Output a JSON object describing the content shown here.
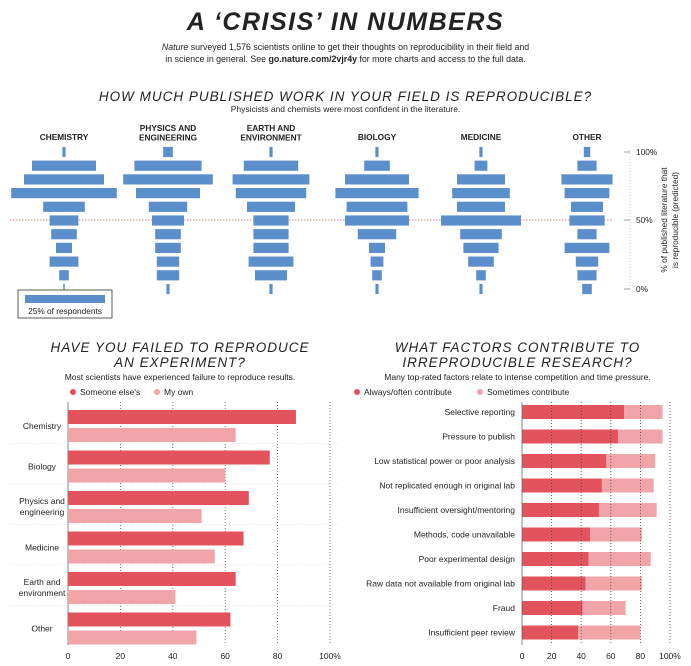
{
  "header": {
    "title": "A ‘CRISIS’ IN NUMBERS",
    "subtitle_line1_prefix": "Nature",
    "subtitle_line1_rest": " surveyed 1,576 scientists online to get their thoughts on reproducibility in their field and",
    "subtitle_line2_prefix": "in science in general. See ",
    "subtitle_link": "go.nature.com/2vjr4y",
    "subtitle_line2_suffix": " for more charts and access to the full data."
  },
  "section1": {
    "title": "HOW MUCH PUBLISHED WORK IN YOUR FIELD IS REPRODUCIBLE?",
    "note": "Physicists and chemists were most confident in the literature.",
    "legend_label": "25% of respondents"
  },
  "section2": {
    "title_line1": "HAVE YOU FAILED TO REPRODUCE",
    "title_line2": "AN EXPERIMENT?",
    "note": "Most scientists have experienced failure to reproduce results.",
    "legend1": "Someone else's",
    "legend2": "My own"
  },
  "section3": {
    "title_line1": "WHAT FACTORS CONTRIBUTE TO",
    "title_line2": "IRREPRODUCIBLE RESEARCH?",
    "note": "Many top-rated factors relate to intense competition and time pressure.",
    "legend1": "Always/often contribute",
    "legend2": "Sometimes contribute"
  },
  "colors": {
    "dark_red": "#e2535e",
    "light_red": "#f2a5a8",
    "blue": "#5b8fcb",
    "red_line": "#d9534f"
  },
  "chart_data": [
    {
      "type": "histogram-violin",
      "categories": [
        "CHEMISTRY",
        "PHYSICS AND ENGINEERING",
        "EARTH AND ENVIRONMENT",
        "BIOLOGY",
        "MEDICINE",
        "OTHER"
      ],
      "ylabel": "% of published literature that is reproducible (predicted)",
      "yticks": [
        "100%",
        "50%",
        "0%"
      ],
      "scale_note": "25% of respondents",
      "bins_top_to_bottom": [
        "100",
        "90",
        "80",
        "70",
        "60",
        "50",
        "40",
        "30",
        "20",
        "10",
        "0"
      ],
      "series": [
        {
          "name": "CHEMISTRY",
          "values": [
            1,
            20,
            25,
            33,
            13,
            9,
            8,
            5,
            9,
            3,
            0
          ]
        },
        {
          "name": "PHYSICS AND ENGINEERING",
          "values": [
            3,
            21,
            28,
            20,
            12,
            10,
            8,
            8,
            7,
            7,
            1
          ]
        },
        {
          "name": "EARTH AND ENVIRONMENT",
          "values": [
            1,
            17,
            24,
            22,
            15,
            11,
            11,
            11,
            14,
            10,
            1
          ]
        },
        {
          "name": "BIOLOGY",
          "values": [
            1,
            8,
            20,
            26,
            19,
            20,
            12,
            5,
            4,
            3,
            1
          ]
        },
        {
          "name": "MEDICINE",
          "values": [
            1,
            4,
            15,
            18,
            15,
            25,
            13,
            11,
            8,
            3,
            1
          ]
        },
        {
          "name": "OTHER",
          "values": [
            2,
            6,
            16,
            14,
            10,
            11,
            6,
            14,
            7,
            6,
            3
          ]
        }
      ]
    },
    {
      "type": "bar",
      "orientation": "horizontal",
      "title": "HAVE YOU FAILED TO REPRODUCE AN EXPERIMENT?",
      "categories": [
        "Chemistry",
        "Biology",
        "Physics and engineering",
        "Medicine",
        "Earth and environment",
        "Other"
      ],
      "series": [
        {
          "name": "Someone else's",
          "values": [
            87,
            77,
            69,
            67,
            64,
            62
          ]
        },
        {
          "name": "My own",
          "values": [
            64,
            60,
            51,
            56,
            41,
            49
          ]
        }
      ],
      "xlim": [
        0,
        100
      ],
      "xticks": [
        "0",
        "20",
        "40",
        "60",
        "80",
        "100%"
      ]
    },
    {
      "type": "bar",
      "orientation": "horizontal",
      "stacked": true,
      "title": "WHAT FACTORS CONTRIBUTE TO IRREPRODUCIBLE RESEARCH?",
      "categories": [
        "Selective reporting",
        "Pressure to publish",
        "Low statistical power or poor analysis",
        "Not replicated enough in original lab",
        "Insufficient oversight/mentoring",
        "Methods, code unavailable",
        "Poor experimental design",
        "Raw data not available from original lab",
        "Fraud",
        "Insufficient peer review"
      ],
      "series": [
        {
          "name": "Always/often contribute",
          "values": [
            69,
            65,
            57,
            54,
            52,
            46,
            45,
            43,
            41,
            38
          ]
        },
        {
          "name": "Sometimes contribute",
          "values": [
            26,
            30,
            33,
            35,
            39,
            35,
            42,
            38,
            29,
            42
          ]
        }
      ],
      "xlim": [
        0,
        100
      ],
      "xticks": [
        "0",
        "20",
        "40",
        "60",
        "80",
        "100%"
      ]
    }
  ]
}
